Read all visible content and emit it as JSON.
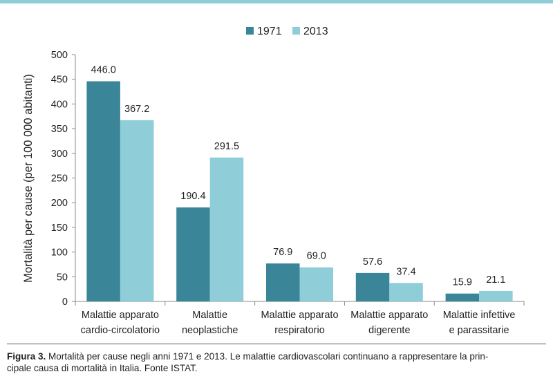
{
  "chart_data": {
    "type": "bar",
    "categories": [
      [
        "Malattie apparato",
        "cardio-circolatorio"
      ],
      [
        "Malattie",
        "neoplastiche"
      ],
      [
        "Malattie apparato",
        "respiratorio"
      ],
      [
        "Malattie apparato",
        "digerente"
      ],
      [
        "Malattie infettive",
        "e parassitarie"
      ]
    ],
    "series": [
      {
        "name": "1971",
        "values": [
          446.0,
          190.4,
          76.9,
          57.6,
          15.9
        ],
        "color": "#3a8597"
      },
      {
        "name": "2013",
        "values": [
          367.2,
          291.5,
          69.0,
          37.4,
          21.1
        ],
        "color": "#8fcdd9"
      }
    ],
    "value_labels": {
      "1971": [
        "446.0",
        "190.4",
        "76.9",
        "57.6",
        "15.9"
      ],
      "2013": [
        "367.2",
        "291.5",
        "69.0",
        "37.4",
        "21.1"
      ]
    },
    "ylabel": "Mortalità per cause (per 100 000 abitanti)",
    "ylim": [
      0,
      500
    ],
    "yticks": [
      0,
      50,
      100,
      150,
      200,
      250,
      300,
      350,
      400,
      450,
      500
    ],
    "grid": false,
    "legend": "top-center"
  },
  "caption": {
    "label": "Figura 3.",
    "line1": " Mortalità per cause negli anni 1971 e 2013. Le malattie cardiovascolari continuano a rappresentare la prin-",
    "line2": "cipale causa di mortalità in Italia. Fonte ISTAT."
  }
}
